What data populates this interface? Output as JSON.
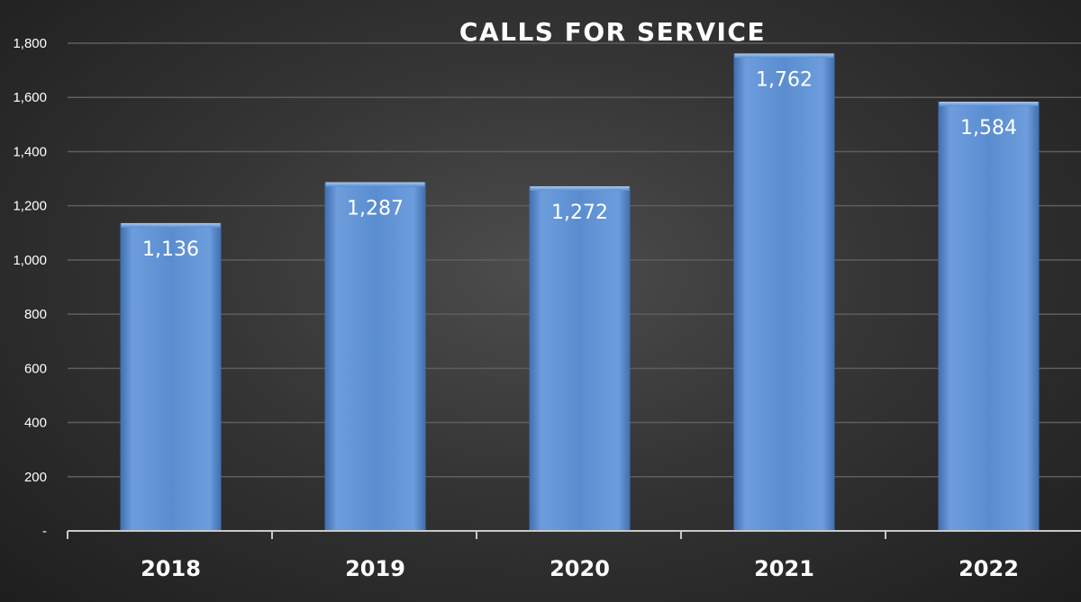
{
  "chart_data": {
    "type": "bar",
    "title": "CALLS FOR SERVICE",
    "categories": [
      "2018",
      "2019",
      "2020",
      "2021",
      "2022"
    ],
    "values": [
      1136,
      1287,
      1272,
      1762,
      1584
    ],
    "data_labels": [
      "1,136",
      "1,287",
      "1,272",
      "1,762",
      "1,584"
    ],
    "yticks": [
      0,
      200,
      400,
      600,
      800,
      1000,
      1200,
      1400,
      1600,
      1800
    ],
    "ytick_labels": [
      "-",
      "200",
      "400",
      "600",
      "800",
      "1,000",
      "1,200",
      "1,400",
      "1,600",
      "1,800"
    ],
    "ylim": [
      0,
      1800
    ],
    "grid": true,
    "legend": "none",
    "xlabel": "",
    "ylabel": ""
  },
  "colors": {
    "bar": "#5a8dd0",
    "bar_light": "#8ab3e6",
    "bar_dark": "#3f6fae",
    "gridline": "#5e5e5e",
    "axis": "#c8c8c8",
    "text": "#ffffff"
  }
}
